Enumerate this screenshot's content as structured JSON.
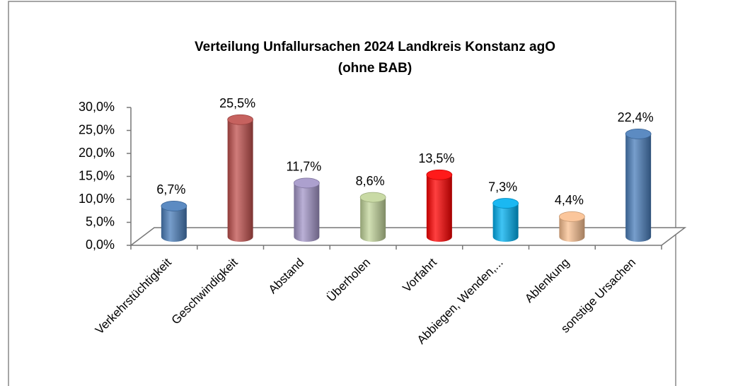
{
  "chart_data": {
    "type": "bar",
    "title": "Verteilung Unfallursachen 2024 Landkreis Konstanz agO",
    "subtitle": "(ohne BAB)",
    "categories": [
      "Verkehrstüchtigkeit",
      "Geschwindigkeit",
      "Abstand",
      "Überholen",
      "Vorfahrt",
      "Abbiegen, Wenden,...",
      "Ablenkung",
      "sonstige Ursachen"
    ],
    "values": [
      6.7,
      25.5,
      11.7,
      8.6,
      13.5,
      7.3,
      4.4,
      22.4
    ],
    "value_labels": [
      "6,7%",
      "25,5%",
      "11,7%",
      "8,6%",
      "13,5%",
      "7,3%",
      "4,4%",
      "22,4%"
    ],
    "colors": [
      "#4a7ebb",
      "#c0504d",
      "#a395c8",
      "#c3d69b",
      "#ff0000",
      "#00b0f0",
      "#fac090",
      "#4a7ebb"
    ],
    "ylim": [
      0,
      30
    ],
    "yticks": [
      {
        "value": 0,
        "label": "0,0%"
      },
      {
        "value": 5,
        "label": "5,0%"
      },
      {
        "value": 10,
        "label": "10,0%"
      },
      {
        "value": 15,
        "label": "15,0%"
      },
      {
        "value": 20,
        "label": "20,0%"
      },
      {
        "value": 25,
        "label": "25,0%"
      },
      {
        "value": 30,
        "label": "30,0%"
      }
    ]
  }
}
